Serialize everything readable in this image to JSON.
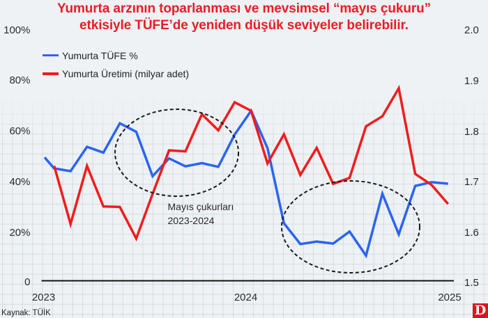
{
  "title": {
    "line1": "Yumurta arzının toparlanması ve mevsimsel “mayıs çukuru”",
    "line2": "etkisiyle TÜFE’de yeniden düşük seviyeler belirebilir."
  },
  "legend": [
    {
      "label": "Yumurta TÜFE %"
    },
    {
      "label": "Yumurta Üretimi (milyar adet)"
    }
  ],
  "axes": {
    "left_ticks": [
      "100%",
      "80%",
      "60%",
      "40%",
      "20%",
      "0"
    ],
    "right_ticks": [
      "2.0",
      "1.9",
      "1.8",
      "1.7",
      "1.6",
      "1.5"
    ],
    "x_ticks": [
      "2023",
      "2024",
      "2025"
    ]
  },
  "annotation": {
    "line1": "Mayıs çukurları",
    "line2": "2023-2024"
  },
  "source": "Kaynak: TÜİK",
  "logo": "D",
  "chart_data": {
    "type": "line",
    "title": "Yumurta arzının toparlanması ve mevsimsel “mayıs çukuru” etkisiyle TÜFE’de yeniden düşük seviyeler belirebilir.",
    "xlabel": "",
    "ylabel_left": "Yumurta TÜFE %",
    "ylabel_right": "Yumurta Üretimi (milyar adet)",
    "x": [
      0,
      1,
      2,
      3,
      4,
      5,
      6,
      7,
      8,
      9,
      10,
      11,
      12,
      13,
      14,
      15,
      16,
      17,
      18,
      19,
      20,
      21,
      22,
      23,
      24
    ],
    "x_tick_labels": [
      "2023",
      "2024",
      "2025"
    ],
    "ylim_left": [
      0,
      100
    ],
    "ylim_right": [
      1.5,
      2.0
    ],
    "yticks_left": [
      0,
      20,
      40,
      60,
      80,
      100
    ],
    "yticks_right": [
      1.5,
      1.6,
      1.7,
      1.8,
      1.9,
      2.0
    ],
    "series": [
      {
        "name": "Yumurta TÜFE %",
        "axis": "left",
        "color": "#2b63f3",
        "x": [
          -0.58,
          0,
          1,
          2,
          3,
          4,
          5,
          6,
          7,
          8,
          9,
          10,
          11,
          12,
          13,
          14,
          15,
          16,
          17,
          18,
          19,
          20,
          21,
          22,
          23,
          24
        ],
        "values": [
          49.4,
          45.0,
          43.9,
          53.6,
          51.3,
          63.0,
          59.6,
          41.9,
          49.0,
          45.8,
          47.1,
          45.6,
          58.5,
          68.0,
          53.1,
          23.1,
          14.8,
          15.8,
          15.0,
          19.8,
          10.2,
          34.9,
          18.7,
          38.0,
          39.5,
          38.9
        ]
      },
      {
        "name": "Yumurta Üretimi (milyar adet)",
        "axis": "right",
        "color": "#f31b1b",
        "values": [
          1.73,
          1.614,
          1.73,
          1.649,
          1.648,
          1.585,
          1.674,
          1.761,
          1.759,
          1.833,
          1.801,
          1.857,
          1.84,
          1.735,
          1.793,
          1.712,
          1.766,
          1.694,
          1.706,
          1.809,
          1.829,
          1.885,
          1.714,
          1.692,
          1.654
        ]
      }
    ],
    "annotations": [
      {
        "text": "Mayıs çukurları 2023-2024",
        "shape": "dashed-ellipse",
        "around": "mid-2023"
      },
      {
        "text": "",
        "shape": "dashed-ellipse",
        "around": "mid-2024"
      }
    ],
    "grid": true,
    "legend_position": "top-left"
  }
}
